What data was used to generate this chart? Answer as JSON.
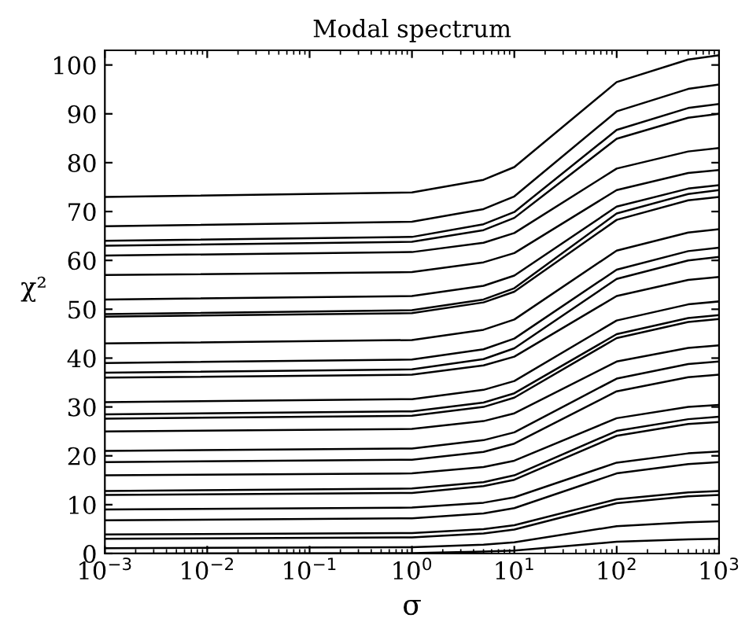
{
  "chart_data": {
    "type": "line",
    "title": "Modal spectrum",
    "xlabel": "σ",
    "ylabel": "χ²",
    "log": "x",
    "xlim": [
      0.001,
      1000
    ],
    "ylim": [
      0,
      103
    ],
    "xticks": [
      {
        "value": 0.001,
        "label": "10$^{−3}$"
      },
      {
        "value": 0.01,
        "label": "10$^{−2}$"
      },
      {
        "value": 0.1,
        "label": "10$^{−1}$"
      },
      {
        "value": 1,
        "label": "10$^{0}$"
      },
      {
        "value": 10,
        "label": "10$^{1}$"
      },
      {
        "value": 100,
        "label": "10$^{2}$"
      },
      {
        "value": 1000,
        "label": "10$^{3}$"
      }
    ],
    "yticks": [
      0,
      10,
      20,
      30,
      40,
      50,
      60,
      70,
      80,
      90,
      100
    ],
    "x": [
      0.001,
      1,
      5,
      10,
      100,
      500,
      1000
    ],
    "series": [
      {
        "color": "#000000",
        "values": [
          73,
          73.9,
          76.5,
          79.1,
          96.5,
          101.1,
          102
        ]
      },
      {
        "color": "#000000",
        "values": [
          67,
          67.9,
          70.5,
          73.1,
          90.5,
          95.1,
          96
        ]
      },
      {
        "color": "#000000",
        "values": [
          64,
          64.8,
          67.4,
          69.9,
          86.7,
          91.2,
          92
        ]
      },
      {
        "color": "#000000",
        "values": [
          63,
          63.8,
          66.2,
          68.7,
          84.9,
          89.2,
          90
        ]
      },
      {
        "color": "#000000",
        "values": [
          61,
          61.7,
          63.6,
          65.6,
          78.8,
          82.3,
          83
        ]
      },
      {
        "color": "#000000",
        "values": [
          57,
          57.6,
          59.6,
          61.5,
          74.4,
          77.9,
          78.5
        ]
      },
      {
        "color": "#000000",
        "values": [
          52,
          52.7,
          54.8,
          56.9,
          71,
          74.7,
          75.4
        ]
      },
      {
        "color": "#000000",
        "values": [
          49,
          49.8,
          52,
          54.3,
          69.6,
          73.6,
          74.4
        ]
      },
      {
        "color": "#000000",
        "values": [
          48.5,
          49.2,
          51.4,
          53.6,
          68.3,
          72.3,
          73
        ]
      },
      {
        "color": "#000000",
        "values": [
          43,
          43.7,
          45.8,
          47.9,
          62,
          65.7,
          66.4
        ]
      },
      {
        "color": "#000000",
        "values": [
          39,
          39.7,
          41.8,
          44,
          58.1,
          61.9,
          62.6
        ]
      },
      {
        "color": "#000000",
        "values": [
          37,
          37.7,
          39.8,
          42,
          56.2,
          60,
          60.7
        ]
      },
      {
        "color": "#000000",
        "values": [
          36,
          36.6,
          38.5,
          40.3,
          52.7,
          56,
          56.6
        ]
      },
      {
        "color": "#000000",
        "values": [
          31,
          31.6,
          33.5,
          35.3,
          47.7,
          51,
          51.6
        ]
      },
      {
        "color": "#000000",
        "values": [
          28.5,
          29.1,
          30.9,
          32.8,
          44.9,
          48.2,
          48.8
        ]
      },
      {
        "color": "#000000",
        "values": [
          27.6,
          28.2,
          30,
          31.9,
          44.1,
          47.4,
          48
        ]
      },
      {
        "color": "#000000",
        "values": [
          25,
          25.5,
          27.1,
          28.7,
          39.3,
          42.1,
          42.6
        ]
      },
      {
        "color": "#000000",
        "values": [
          21,
          21.5,
          23.2,
          24.8,
          35.8,
          38.8,
          39.3
        ]
      },
      {
        "color": "#000000",
        "values": [
          18.7,
          19.2,
          20.8,
          22.5,
          33.2,
          36.1,
          36.6
        ]
      },
      {
        "color": "#000000",
        "values": [
          16,
          16.4,
          17.7,
          19,
          27.7,
          30,
          30.4
        ]
      },
      {
        "color": "#000000",
        "values": [
          12.8,
          13.3,
          14.6,
          16,
          25.1,
          27.5,
          28
        ]
      },
      {
        "color": "#000000",
        "values": [
          12,
          12.4,
          13.8,
          15.1,
          24.1,
          26.5,
          26.9
        ]
      },
      {
        "color": "#000000",
        "values": [
          9,
          9.4,
          10.4,
          11.5,
          18.6,
          20.5,
          20.9
        ]
      },
      {
        "color": "#000000",
        "values": [
          6.8,
          7.2,
          8.2,
          9.3,
          16.4,
          18.3,
          18.7
        ]
      },
      {
        "color": "#000000",
        "values": [
          3.9,
          4.2,
          5,
          5.8,
          11.1,
          12.5,
          12.8
        ]
      },
      {
        "color": "#000000",
        "values": [
          3,
          3.3,
          4.1,
          4.9,
          10.3,
          11.7,
          12
        ]
      },
      {
        "color": "#000000",
        "values": [
          1.1,
          1.3,
          1.8,
          2.3,
          5.6,
          6.4,
          6.6
        ]
      },
      {
        "color": "#000000",
        "values": [
          0,
          0.1,
          0.4,
          0.6,
          2.4,
          2.9,
          3
        ]
      }
    ]
  }
}
